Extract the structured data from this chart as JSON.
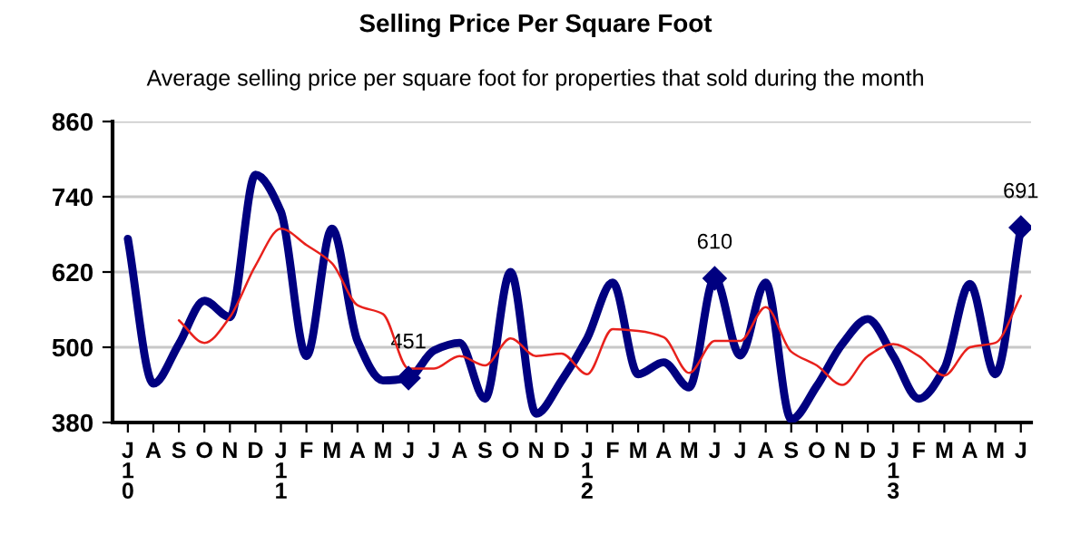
{
  "chart_data": {
    "type": "line",
    "title": "Selling Price Per Square Foot",
    "subtitle": "Average selling price per square foot for properties that sold during the month",
    "categories": [
      "J\n1\n0",
      "A",
      "S",
      "O",
      "N",
      "D",
      "J\n1\n1",
      "F",
      "M",
      "A",
      "M",
      "J",
      "J",
      "A",
      "S",
      "O",
      "N",
      "D",
      "J\n1\n2",
      "F",
      "M",
      "A",
      "M",
      "J",
      "J",
      "A",
      "S",
      "O",
      "N",
      "D",
      "J\n1\n3",
      "F",
      "M",
      "A",
      "M",
      "J"
    ],
    "series": [
      {
        "color": "#000080",
        "values": [
          673,
          442,
          505,
          574,
          548,
          775,
          716,
          486,
          689,
          510,
          447,
          451,
          495,
          507,
          418,
          620,
          394,
          447,
          514,
          603,
          457,
          476,
          436,
          610,
          487,
          603,
          385,
          438,
          505,
          545,
          486,
          418,
          466,
          601,
          457,
          691
        ],
        "value_labels": [
          null,
          null,
          null,
          null,
          null,
          null,
          null,
          null,
          null,
          null,
          null,
          "451",
          null,
          null,
          null,
          null,
          null,
          null,
          null,
          null,
          null,
          null,
          null,
          "610",
          null,
          null,
          null,
          null,
          null,
          null,
          null,
          null,
          null,
          null,
          null,
          "691"
        ]
      },
      {
        "color": "#e8211c",
        "values": [
          null,
          null,
          543,
          507,
          548,
          630,
          689,
          663,
          634,
          567,
          553,
          466,
          466,
          486,
          471,
          514,
          486,
          490,
          457,
          529,
          526,
          516,
          459,
          510,
          510,
          564,
          493,
          471,
          440,
          486,
          505,
          486,
          455,
          500,
          507,
          582
        ]
      }
    ],
    "ylim": [
      380,
      860
    ],
    "yticks": [
      380,
      500,
      620,
      740,
      860
    ],
    "grid": "y",
    "legend": false
  }
}
